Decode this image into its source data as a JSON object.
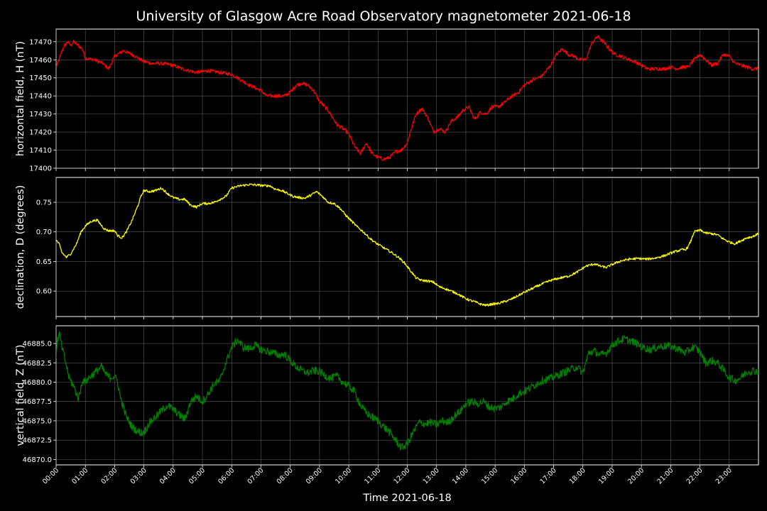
{
  "chart_data": {
    "type": "line",
    "title": "University of Glasgow Acre Road Observatory magnetometer 2021-06-18",
    "xlabel": "Time 2021-06-18",
    "x_ticks": [
      "00:00",
      "01:00",
      "02:00",
      "03:00",
      "04:00",
      "05:00",
      "06:00",
      "07:00",
      "08:00",
      "09:00",
      "10:00",
      "11:00",
      "12:00",
      "13:00",
      "14:00",
      "15:00",
      "16:00",
      "17:00",
      "18:00",
      "19:00",
      "20:00",
      "21:00",
      "22:00",
      "23:00"
    ],
    "xlim_hours": [
      0,
      24
    ],
    "grid": true,
    "background": "#000000",
    "panels": [
      {
        "ylabel": "horizontal field, H (nT)",
        "series_color": "#ff0000",
        "ylim": [
          17400,
          17477
        ],
        "y_ticks": [
          17400,
          17410,
          17420,
          17430,
          17440,
          17450,
          17460,
          17470
        ],
        "y_tick_labels": [
          "17400",
          "17410",
          "17420",
          "17430",
          "17440",
          "17450",
          "17460",
          "17470"
        ],
        "noise": 1.0,
        "series": [
          {
            "x": [
              0,
              0.1,
              0.25,
              0.4,
              0.5,
              0.6,
              0.75,
              0.9,
              1.0,
              1.3,
              1.6,
              1.8,
              2.0,
              2.3,
              2.6,
              3.0,
              3.3,
              3.6,
              4.0,
              4.3,
              4.8,
              5.2,
              5.6,
              6.0,
              6.3,
              6.6,
              7.0,
              7.2,
              7.5,
              7.8,
              8.0,
              8.2,
              8.4,
              8.6,
              8.8,
              9.0,
              9.3,
              9.6,
              9.8,
              10.0,
              10.2,
              10.4,
              10.6,
              10.8,
              11.0,
              11.2,
              11.4,
              11.6,
              11.8,
              12.0,
              12.1,
              12.3,
              12.5,
              12.7,
              12.9,
              13.1,
              13.3,
              13.5,
              13.7,
              13.9,
              14.1,
              14.3,
              14.5,
              14.7,
              14.9,
              15.1,
              15.3,
              15.5,
              15.8,
              16.0,
              16.3,
              16.6,
              16.9,
              17.1,
              17.3,
              17.5,
              17.7,
              17.9,
              18.1,
              18.3,
              18.5,
              18.7,
              18.9,
              19.1,
              19.3,
              19.6,
              19.9,
              20.2,
              20.5,
              20.8,
              21.0,
              21.2,
              21.4,
              21.6,
              21.8,
              22.0,
              22.2,
              22.4,
              22.6,
              22.8,
              23.0,
              23.2,
              23.4,
              23.6,
              23.8,
              24
            ],
            "y": [
              17456,
              17460,
              17467,
              17470,
              17468,
              17470,
              17468,
              17466,
              17461,
              17460,
              17458,
              17455,
              17462,
              17465,
              17463,
              17459,
              17458,
              17458,
              17457,
              17455,
              17453,
              17454,
              17453,
              17452,
              17449,
              17446,
              17443,
              17440,
              17440,
              17440,
              17442,
              17446,
              17447,
              17446,
              17443,
              17437,
              17432,
              17424,
              17422,
              17419,
              17412,
              17408,
              17414,
              17408,
              17406,
              17405,
              17406,
              17409,
              17410,
              17414,
              17420,
              17430,
              17433,
              17428,
              17420,
              17422,
              17420,
              17426,
              17428,
              17432,
              17434,
              17427,
              17431,
              17430,
              17434,
              17434,
              17436,
              17439,
              17442,
              17446,
              17449,
              17451,
              17457,
              17463,
              17466,
              17463,
              17462,
              17460,
              17460,
              17469,
              17473,
              17470,
              17466,
              17463,
              17462,
              17460,
              17458,
              17455,
              17455,
              17455,
              17456,
              17455,
              17456,
              17456,
              17460,
              17463,
              17460,
              17457,
              17458,
              17463,
              17462,
              17458,
              17457,
              17456,
              17455,
              17455
            ]
          }
        ]
      },
      {
        "ylabel": "declination, D (degrees)",
        "series_color": "#ffff00",
        "ylim": [
          0.557,
          0.792
        ],
        "y_ticks": [
          0.6,
          0.65,
          0.7,
          0.75
        ],
        "y_tick_labels": [
          "0.60",
          "0.65",
          "0.70",
          "0.75"
        ],
        "noise": 0.002,
        "series": [
          {
            "x": [
              0,
              0.1,
              0.2,
              0.35,
              0.5,
              0.7,
              0.85,
              1.0,
              1.2,
              1.4,
              1.5,
              1.65,
              1.8,
              2.0,
              2.1,
              2.25,
              2.4,
              2.6,
              2.8,
              2.9,
              3.0,
              3.2,
              3.4,
              3.6,
              3.8,
              4.0,
              4.2,
              4.4,
              4.6,
              4.8,
              5.0,
              5.2,
              5.4,
              5.6,
              5.8,
              6.0,
              6.3,
              6.6,
              6.9,
              7.1,
              7.3,
              7.5,
              7.7,
              7.9,
              8.1,
              8.3,
              8.5,
              8.7,
              8.9,
              9.1,
              9.3,
              9.5,
              9.7,
              9.9,
              10.1,
              10.3,
              10.5,
              10.7,
              10.9,
              11.1,
              11.3,
              11.5,
              11.7,
              11.9,
              12.1,
              12.3,
              12.5,
              12.7,
              12.9,
              13.1,
              13.3,
              13.5,
              13.7,
              13.9,
              14.1,
              14.3,
              14.5,
              14.7,
              14.9,
              15.1,
              15.3,
              15.5,
              15.7,
              16.0,
              16.3,
              16.6,
              16.9,
              17.2,
              17.5,
              17.8,
              18.1,
              18.4,
              18.6,
              18.8,
              19.0,
              19.3,
              19.6,
              19.9,
              20.2,
              20.5,
              20.8,
              21.1,
              21.4,
              21.5,
              21.6,
              21.7,
              21.8,
              22.0,
              22.2,
              22.4,
              22.6,
              22.8,
              23.0,
              23.2,
              23.4,
              23.6,
              23.8,
              24
            ],
            "y": [
              0.686,
              0.68,
              0.665,
              0.657,
              0.663,
              0.68,
              0.7,
              0.71,
              0.718,
              0.72,
              0.714,
              0.705,
              0.702,
              0.702,
              0.694,
              0.69,
              0.7,
              0.72,
              0.745,
              0.76,
              0.77,
              0.768,
              0.77,
              0.774,
              0.765,
              0.758,
              0.755,
              0.755,
              0.745,
              0.742,
              0.748,
              0.748,
              0.75,
              0.755,
              0.76,
              0.774,
              0.778,
              0.78,
              0.779,
              0.778,
              0.778,
              0.772,
              0.77,
              0.765,
              0.76,
              0.758,
              0.757,
              0.762,
              0.768,
              0.76,
              0.75,
              0.748,
              0.74,
              0.728,
              0.718,
              0.708,
              0.7,
              0.69,
              0.682,
              0.676,
              0.67,
              0.664,
              0.657,
              0.648,
              0.635,
              0.622,
              0.618,
              0.617,
              0.615,
              0.607,
              0.604,
              0.6,
              0.596,
              0.59,
              0.585,
              0.582,
              0.578,
              0.576,
              0.578,
              0.579,
              0.582,
              0.585,
              0.59,
              0.598,
              0.605,
              0.612,
              0.618,
              0.622,
              0.625,
              0.632,
              0.642,
              0.646,
              0.642,
              0.64,
              0.645,
              0.651,
              0.654,
              0.655,
              0.654,
              0.656,
              0.66,
              0.666,
              0.67,
              0.67,
              0.675,
              0.686,
              0.7,
              0.703,
              0.698,
              0.697,
              0.695,
              0.688,
              0.683,
              0.68,
              0.685,
              0.69,
              0.692,
              0.697
            ]
          }
        ]
      },
      {
        "ylabel": "vertical field, Z (nT)",
        "series_color": "#008000",
        "ylim": [
          46869.3,
          46887.3
        ],
        "y_ticks": [
          46870,
          46872.5,
          46875,
          46877.5,
          46880,
          46882.5,
          46885
        ],
        "y_tick_labels": [
          "46870.0",
          "46872.5",
          "46875.0",
          "46877.5",
          "46880.0",
          "46882.5",
          "46885.0"
        ],
        "noise": 0.5,
        "series": [
          {
            "x": [
              0,
              0.05,
              0.12,
              0.2,
              0.3,
              0.45,
              0.6,
              0.75,
              0.8,
              0.9,
              1.0,
              1.1,
              1.25,
              1.4,
              1.55,
              1.7,
              1.85,
              2.0,
              2.1,
              2.2,
              2.4,
              2.6,
              2.8,
              2.95,
              3.05,
              3.2,
              3.4,
              3.6,
              3.8,
              4.0,
              4.2,
              4.4,
              4.6,
              4.8,
              5.0,
              5.2,
              5.4,
              5.6,
              5.8,
              6.0,
              6.2,
              6.4,
              6.6,
              6.8,
              7.0,
              7.2,
              7.4,
              7.6,
              7.8,
              8.0,
              8.2,
              8.4,
              8.6,
              8.8,
              9.0,
              9.2,
              9.4,
              9.6,
              9.8,
              10.0,
              10.2,
              10.4,
              10.6,
              10.8,
              11.0,
              11.2,
              11.4,
              11.6,
              11.8,
              12.0,
              12.2,
              12.4,
              12.6,
              12.8,
              13.0,
              13.2,
              13.4,
              13.6,
              13.8,
              14.0,
              14.2,
              14.4,
              14.6,
              14.8,
              15.0,
              15.2,
              15.4,
              15.6,
              15.8,
              16.0,
              16.3,
              16.6,
              16.9,
              17.2,
              17.5,
              17.8,
              18.0,
              18.2,
              18.4,
              18.6,
              18.8,
              19.0,
              19.2,
              19.4,
              19.6,
              19.8,
              20.0,
              20.3,
              20.6,
              20.9,
              21.2,
              21.5,
              21.8,
              22.0,
              22.2,
              22.4,
              22.6,
              22.8,
              23.0,
              23.2,
              23.4,
              23.6,
              23.8,
              24
            ],
            "y": [
              46883.5,
              46885.5,
              46886.2,
              46884.5,
              46883,
              46880.5,
              46879.5,
              46878,
              46878.3,
              46880.3,
              46880,
              46880.5,
              46881,
              46881.5,
              46882,
              46881,
              46880.6,
              46880.8,
              46880,
              46878,
              46875.5,
              46874.2,
              46873.6,
              46873.4,
              46873.8,
              46874.8,
              46875.5,
              46876.3,
              46877,
              46876.5,
              46875.8,
              46875.2,
              46877.5,
              46878.2,
              46877.5,
              46878.5,
              46879.8,
              46880.2,
              46882.5,
              46884.5,
              46885.5,
              46884.5,
              46884.3,
              46884.8,
              46884.2,
              46884,
              46883.8,
              46883.5,
              46883.6,
              46882.8,
              46882,
              46881.5,
              46881.2,
              46881.5,
              46881.4,
              46880.8,
              46880.5,
              46880.8,
              46880,
              46879.5,
              46878.8,
              46877,
              46876,
              46875.5,
              46875,
              46874.2,
              46873.5,
              46872.5,
              46871.5,
              46872,
              46873.5,
              46874.8,
              46874.6,
              46874.8,
              46874.5,
              46875,
              46874.8,
              46875.6,
              46876.2,
              46877.2,
              46877.5,
              46877.2,
              46877.5,
              46876.8,
              46876.6,
              46876.8,
              46877.5,
              46877.8,
              46878.5,
              46878.8,
              46879.5,
              46880.2,
              46880.5,
              46881,
              46881.5,
              46882,
              46881.2,
              46883.8,
              46884,
              46883.5,
              46883.8,
              46884.8,
              46885.3,
              46885.6,
              46885.4,
              46885.1,
              46884.6,
              46884.2,
              46884.6,
              46884.7,
              46884.4,
              46883.8,
              46884.6,
              46883.9,
              46882.5,
              46882.8,
              46882.5,
              46881.6,
              46880.6,
              46880.2,
              46880.6,
              46881.3,
              46881.5,
              46881.4
            ]
          }
        ]
      }
    ]
  }
}
